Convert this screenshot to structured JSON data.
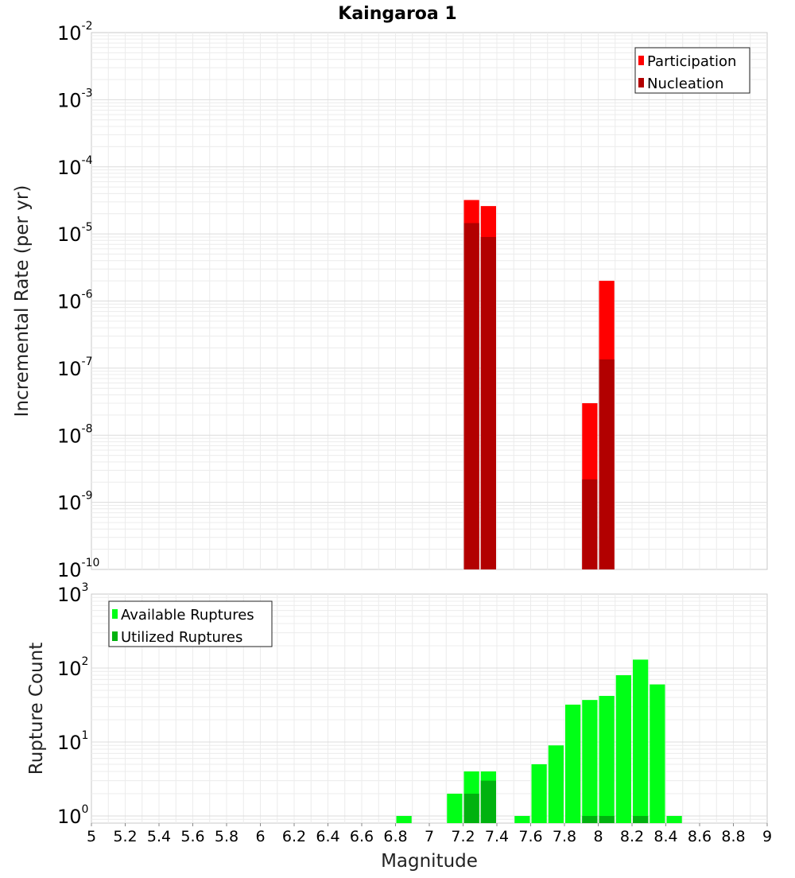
{
  "chart_data": [
    {
      "type": "bar",
      "title": "Kaingaroa 1",
      "ylabel": "Incremental Rate (per yr)",
      "xlabel": "",
      "y_scale": "log",
      "ylim": [
        1e-10,
        0.01
      ],
      "xlim": [
        5,
        9
      ],
      "bin_width": 0.1,
      "grid": true,
      "legend_position": "top-right",
      "series": [
        {
          "name": "Participation",
          "color": "#ff0000",
          "points": [
            {
              "x": 7.25,
              "y": 3.2e-05
            },
            {
              "x": 7.35,
              "y": 2.6e-05
            },
            {
              "x": 7.95,
              "y": 3e-08
            },
            {
              "x": 8.05,
              "y": 2e-06
            }
          ]
        },
        {
          "name": "Nucleation",
          "color": "#b20000",
          "points": [
            {
              "x": 7.25,
              "y": 1.45e-05
            },
            {
              "x": 7.35,
              "y": 9e-06
            },
            {
              "x": 7.95,
              "y": 2.2e-09
            },
            {
              "x": 8.05,
              "y": 1.35e-07
            }
          ]
        }
      ]
    },
    {
      "type": "bar",
      "title": "",
      "ylabel": "Rupture Count",
      "xlabel": "Magnitude",
      "y_scale": "log",
      "ylim": [
        0.8,
        1000
      ],
      "xlim": [
        5,
        9
      ],
      "bin_width": 0.1,
      "grid": true,
      "legend_position": "top-left",
      "x_ticks": [
        "5",
        "5.2",
        "5.4",
        "5.6",
        "5.8",
        "6",
        "6.2",
        "6.4",
        "6.6",
        "6.8",
        "7",
        "7.2",
        "7.4",
        "7.6",
        "7.8",
        "8",
        "8.2",
        "8.4",
        "8.6",
        "8.8",
        "9"
      ],
      "series": [
        {
          "name": "Available Ruptures",
          "color": "#00ff16",
          "points": [
            {
              "x": 6.85,
              "y": 1
            },
            {
              "x": 7.15,
              "y": 2
            },
            {
              "x": 7.25,
              "y": 4
            },
            {
              "x": 7.35,
              "y": 4
            },
            {
              "x": 7.55,
              "y": 1
            },
            {
              "x": 7.65,
              "y": 5
            },
            {
              "x": 7.75,
              "y": 9
            },
            {
              "x": 7.85,
              "y": 32
            },
            {
              "x": 7.95,
              "y": 37
            },
            {
              "x": 8.05,
              "y": 42
            },
            {
              "x": 8.15,
              "y": 80
            },
            {
              "x": 8.25,
              "y": 130
            },
            {
              "x": 8.35,
              "y": 60
            },
            {
              "x": 8.45,
              "y": 1
            }
          ]
        },
        {
          "name": "Utilized Ruptures",
          "color": "#00b20f",
          "points": [
            {
              "x": 7.25,
              "y": 2
            },
            {
              "x": 7.35,
              "y": 3
            },
            {
              "x": 7.95,
              "y": 1
            },
            {
              "x": 8.05,
              "y": 1
            },
            {
              "x": 8.25,
              "y": 1
            }
          ]
        }
      ]
    }
  ]
}
